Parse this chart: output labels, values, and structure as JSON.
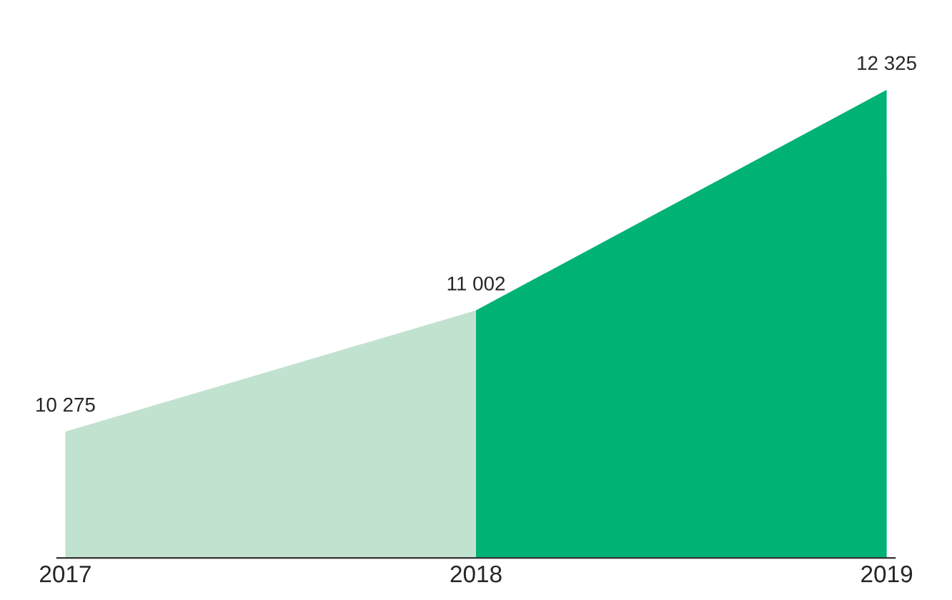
{
  "chart_data": {
    "type": "area",
    "categories": [
      "2017",
      "2018",
      "2019"
    ],
    "series": [
      {
        "color": "#c2e2d0",
        "values": [
          10275,
          11002,
          null
        ],
        "value_labels": [
          "10 275",
          null,
          null
        ]
      },
      {
        "color": "#00b274",
        "values": [
          null,
          11002,
          12325
        ],
        "value_labels": [
          null,
          "11 002",
          "12 325"
        ]
      }
    ],
    "grid": false,
    "legend": false
  }
}
